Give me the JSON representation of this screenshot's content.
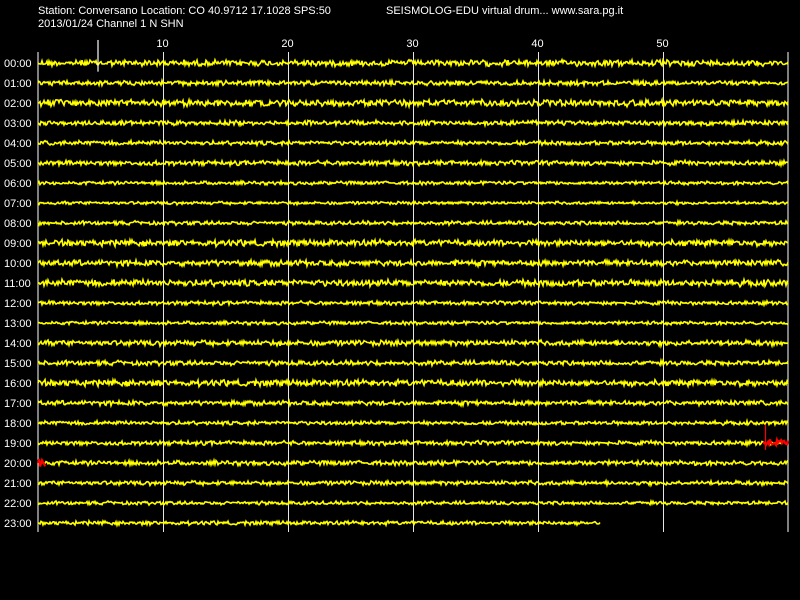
{
  "header": {
    "station_line": "Station: Conversano Location: CO 40.9712 17.1028 SPS:50",
    "app_line": "SEISMOLOG-EDU virtual drum... www.sara.pg.it",
    "date_line": "2013/01/24  Channel 1 N SHN"
  },
  "colors": {
    "background": "#000000",
    "trace": "#ffff00",
    "event_trace": "#ff0000",
    "grid": "#ffffff",
    "text": "#ffffff"
  },
  "chart_data": {
    "type": "line",
    "title": "",
    "xlabel": "",
    "ylabel": "",
    "x_unit": "minutes",
    "xlim": [
      0,
      60
    ],
    "x_ticks": [
      10,
      20,
      30,
      40,
      50
    ],
    "grid": true,
    "rows": [
      {
        "label": "00:00",
        "end_minute": 60,
        "amplitude": 0.8
      },
      {
        "label": "01:00",
        "end_minute": 60,
        "amplitude": 0.6
      },
      {
        "label": "02:00",
        "end_minute": 60,
        "amplitude": 0.85
      },
      {
        "label": "03:00",
        "end_minute": 60,
        "amplitude": 0.6
      },
      {
        "label": "04:00",
        "end_minute": 60,
        "amplitude": 0.55
      },
      {
        "label": "05:00",
        "end_minute": 60,
        "amplitude": 0.6
      },
      {
        "label": "06:00",
        "end_minute": 60,
        "amplitude": 0.45
      },
      {
        "label": "07:00",
        "end_minute": 60,
        "amplitude": 0.4
      },
      {
        "label": "08:00",
        "end_minute": 60,
        "amplitude": 0.5
      },
      {
        "label": "09:00",
        "end_minute": 60,
        "amplitude": 0.8
      },
      {
        "label": "10:00",
        "end_minute": 60,
        "amplitude": 0.75
      },
      {
        "label": "11:00",
        "end_minute": 60,
        "amplitude": 0.85
      },
      {
        "label": "12:00",
        "end_minute": 60,
        "amplitude": 0.5
      },
      {
        "label": "13:00",
        "end_minute": 60,
        "amplitude": 0.45
      },
      {
        "label": "14:00",
        "end_minute": 60,
        "amplitude": 0.7
      },
      {
        "label": "15:00",
        "end_minute": 60,
        "amplitude": 0.6
      },
      {
        "label": "16:00",
        "end_minute": 60,
        "amplitude": 0.8
      },
      {
        "label": "17:00",
        "end_minute": 60,
        "amplitude": 0.6
      },
      {
        "label": "18:00",
        "end_minute": 60,
        "amplitude": 0.5
      },
      {
        "label": "19:00",
        "end_minute": 59.5,
        "amplitude": 0.55
      },
      {
        "label": "20:00",
        "end_minute": 60,
        "amplitude": 0.6
      },
      {
        "label": "21:00",
        "end_minute": 60,
        "amplitude": 0.55
      },
      {
        "label": "22:00",
        "end_minute": 60,
        "amplitude": 0.45
      },
      {
        "label": "23:00",
        "end_minute": 45,
        "amplitude": 0.5
      }
    ],
    "spikes": [
      {
        "row": "00:00",
        "minute": 4.8,
        "amplitude": 2.5
      },
      {
        "row": "19:00",
        "minute": 58.2,
        "amplitude": 2.0
      }
    ],
    "events": [
      {
        "row": "19:00",
        "start_minute": 58.0,
        "end_minute": 60.0
      },
      {
        "row": "20:00",
        "start_minute": 0.0,
        "end_minute": 0.6
      }
    ]
  }
}
